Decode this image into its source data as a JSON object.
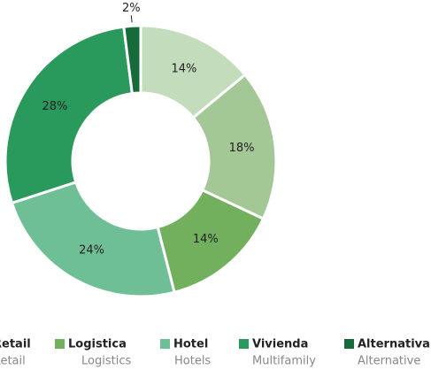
{
  "chart_data": {
    "type": "donut",
    "categories": [
      null,
      "Retail",
      "Logistica",
      "Hotel",
      "Vivienda",
      "Alternativa"
    ],
    "subtitles": [
      null,
      "Retail",
      "Logistics",
      "Hotels",
      "Multifamily",
      "Alternative"
    ],
    "values": [
      14,
      18,
      14,
      24,
      28,
      2
    ],
    "value_labels": [
      "14%",
      "18%",
      "14%",
      "24%",
      "28%",
      "2%"
    ],
    "colors": [
      "#c3dcbc",
      "#a3c795",
      "#72b05e",
      "#6fbf96",
      "#2a9a5c",
      "#176b3a"
    ]
  }
}
